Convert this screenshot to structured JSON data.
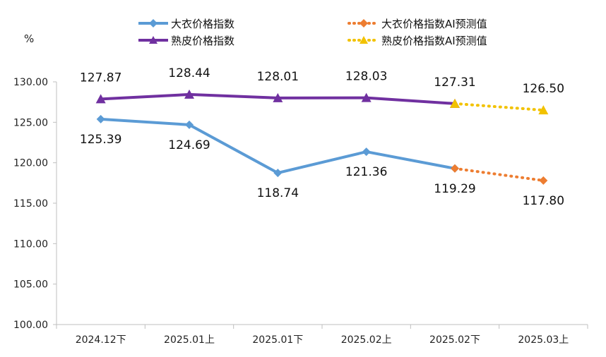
{
  "chart_data": {
    "type": "line",
    "unit_label": "%",
    "categories": [
      "2024.12下",
      "2025.01上",
      "2025.01下",
      "2025.02上",
      "2025.02下",
      "2025.03上"
    ],
    "ylim": [
      100,
      130
    ],
    "yticks": [
      "100.00",
      "105.00",
      "110.00",
      "115.00",
      "120.00",
      "125.00",
      "130.00"
    ],
    "grid": false,
    "legend_position": "top",
    "series": [
      {
        "name": "大衣价格指数",
        "color": "#5B9BD5",
        "marker": "diamond",
        "line": "solid",
        "x": [
          "2024.12下",
          "2025.01上",
          "2025.01下",
          "2025.02上",
          "2025.02下"
        ],
        "values": [
          125.39,
          124.69,
          118.74,
          121.36,
          119.29
        ],
        "labels": [
          "125.39",
          "124.69",
          "118.74",
          "121.36",
          "119.29"
        ],
        "label_position": "below"
      },
      {
        "name": "熟皮价格指数",
        "color": "#7030A0",
        "marker": "triangle",
        "line": "solid",
        "x": [
          "2024.12下",
          "2025.01上",
          "2025.01下",
          "2025.02上",
          "2025.02下"
        ],
        "values": [
          127.87,
          128.44,
          128.01,
          128.03,
          127.31
        ],
        "labels": [
          "127.87",
          "128.44",
          "128.01",
          "128.03",
          "127.31"
        ],
        "label_position": "above"
      },
      {
        "name": "大衣价格指数AI预测值",
        "color": "#ED7D31",
        "marker": "diamond",
        "line": "dotted",
        "x": [
          "2025.02下",
          "2025.03上"
        ],
        "values": [
          119.29,
          117.8
        ],
        "labels": [
          "",
          "117.80"
        ],
        "label_position": "below"
      },
      {
        "name": "熟皮价格指数AI预测值",
        "color": "#F2C200",
        "marker": "triangle",
        "line": "dotted",
        "x": [
          "2025.02下",
          "2025.03上"
        ],
        "values": [
          127.31,
          126.5
        ],
        "labels": [
          "",
          "126.50"
        ],
        "label_position": "above"
      }
    ]
  }
}
